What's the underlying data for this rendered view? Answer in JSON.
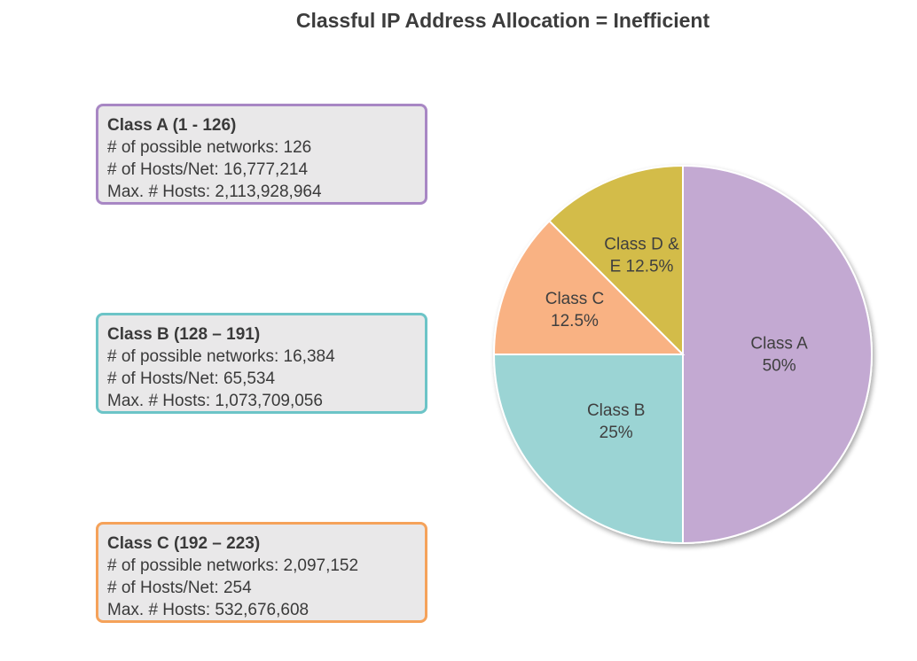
{
  "title": "Classful IP Address Allocation = Inefficient",
  "boxes": [
    {
      "id": "box-a",
      "title": "Class A (1 - 126)",
      "lines": [
        "# of possible networks: 126",
        "# of Hosts/Net: 16,777,214",
        "Max. # Hosts: 2,113,928,964"
      ],
      "border_color": "#a887c4"
    },
    {
      "id": "box-b",
      "title": "Class B (128 – 191)",
      "lines": [
        "# of possible networks: 16,384",
        "# of Hosts/Net: 65,534",
        "Max. # Hosts: 1,073,709,056"
      ],
      "border_color": "#6cc4c7"
    },
    {
      "id": "box-c",
      "title": "Class C (192 – 223)",
      "lines": [
        "# of possible networks: 2,097,152",
        "# of Hosts/Net: 254",
        "Max. # Hosts: 532,676,608"
      ],
      "border_color": "#f5a25a"
    }
  ],
  "chart_data": {
    "type": "pie",
    "start": "top, clockwise",
    "slices": [
      {
        "label": [
          "Class A",
          "50%"
        ],
        "value": 50,
        "color": "#c3a9d2"
      },
      {
        "label": [
          "Class B",
          "25%"
        ],
        "value": 25,
        "color": "#9bd4d4"
      },
      {
        "label": [
          "Class C",
          "12.5%"
        ],
        "value": 12.5,
        "color": "#f9b283"
      },
      {
        "label": [
          "Class D &",
          "E 12.5%"
        ],
        "value": 12.5,
        "color": "#d3bc48"
      }
    ]
  }
}
